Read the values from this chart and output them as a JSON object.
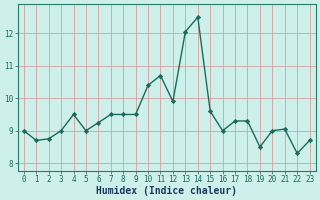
{
  "x": [
    0,
    1,
    2,
    3,
    4,
    5,
    6,
    7,
    8,
    9,
    10,
    11,
    12,
    13,
    14,
    15,
    16,
    17,
    18,
    19,
    20,
    21,
    22,
    23
  ],
  "y": [
    9.0,
    8.7,
    8.75,
    9.0,
    9.5,
    9.0,
    9.25,
    9.5,
    9.5,
    9.5,
    10.4,
    10.7,
    9.9,
    12.05,
    12.5,
    9.6,
    9.0,
    9.3,
    9.3,
    8.5,
    9.0,
    9.05,
    8.3,
    8.7
  ],
  "xlabel": "Humidex (Indice chaleur)",
  "line_color": "#1a6b5e",
  "marker": "D",
  "marker_size": 2.2,
  "linewidth": 1.0,
  "bg_color": "#cdf0ea",
  "grid_color_v": "#d4a0a0",
  "grid_color_h": "#d4a0a0",
  "axis_bg": "#cdf0ea",
  "ylim": [
    7.75,
    12.9
  ],
  "xlim": [
    -0.5,
    23.5
  ],
  "yticks": [
    8,
    9,
    10,
    11,
    12
  ],
  "xticks": [
    0,
    1,
    2,
    3,
    4,
    5,
    6,
    7,
    8,
    9,
    10,
    11,
    12,
    13,
    14,
    15,
    16,
    17,
    18,
    19,
    20,
    21,
    22,
    23
  ],
  "tick_fontsize": 5.5,
  "label_fontsize": 7.0,
  "tick_color": "#1a6b5e",
  "label_color": "#1a3a5e"
}
